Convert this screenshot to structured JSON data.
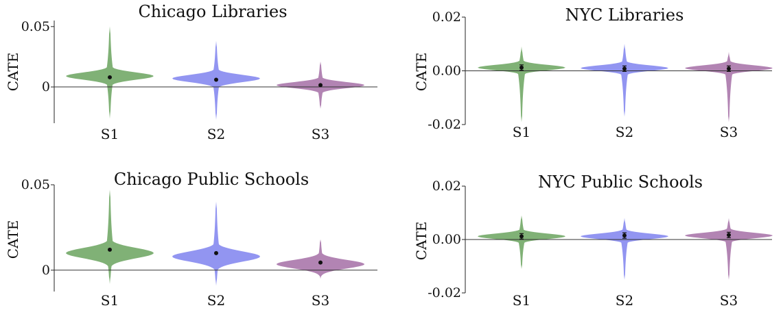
{
  "chart_data": [
    {
      "type": "violin",
      "title": "Chicago Libraries",
      "ylabel": "CATE",
      "xlabel": "",
      "categories": [
        "S1",
        "S2",
        "S3"
      ],
      "ylim": [
        -0.03,
        0.055
      ],
      "ticks": [
        {
          "value": 0.05,
          "label": "0.05"
        },
        {
          "value": 0,
          "label": "0"
        }
      ],
      "zero_line": 0,
      "series": [
        {
          "category": "S1",
          "color": "#6aa35e",
          "mean": 0.008,
          "min": -0.026,
          "max": 0.05,
          "mode": 0.009,
          "spread": 0.003
        },
        {
          "category": "S2",
          "color": "#7f82ee",
          "mean": 0.006,
          "min": -0.027,
          "max": 0.038,
          "mode": 0.007,
          "spread": 0.003
        },
        {
          "category": "S3",
          "color": "#a56fa6",
          "mean": 0.0015,
          "min": -0.018,
          "max": 0.021,
          "mode": 0.0015,
          "spread": 0.0025
        }
      ]
    },
    {
      "type": "violin",
      "title": "NYC Libraries",
      "ylabel": "CATE",
      "xlabel": "",
      "categories": [
        "S1",
        "S2",
        "S3"
      ],
      "ylim": [
        -0.02,
        0.02
      ],
      "ticks": [
        {
          "value": 0.02,
          "label": "0.02"
        },
        {
          "value": 0,
          "label": "0.00"
        },
        {
          "value": -0.02,
          "label": "-0.02"
        }
      ],
      "zero_line": 0,
      "series": [
        {
          "category": "S1",
          "color": "#6aa35e",
          "mean": 0.0012,
          "min": -0.019,
          "max": 0.009,
          "mode": 0.0012,
          "spread": 0.001
        },
        {
          "category": "S2",
          "color": "#7f82ee",
          "mean": 0.0008,
          "min": -0.017,
          "max": 0.01,
          "mode": 0.001,
          "spread": 0.001
        },
        {
          "category": "S3",
          "color": "#a56fa6",
          "mean": 0.0008,
          "min": -0.019,
          "max": 0.007,
          "mode": 0.001,
          "spread": 0.001
        }
      ]
    },
    {
      "type": "violin",
      "title": "Chicago Public Schools",
      "ylabel": "CATE",
      "xlabel": "",
      "categories": [
        "S1",
        "S2",
        "S3"
      ],
      "ylim": [
        -0.0125,
        0.05
      ],
      "ticks": [
        {
          "value": 0.05,
          "label": "0.05"
        },
        {
          "value": 0,
          "label": "0"
        }
      ],
      "zero_line": 0,
      "series": [
        {
          "category": "S1",
          "color": "#6aa35e",
          "mean": 0.012,
          "min": -0.008,
          "max": 0.047,
          "mode": 0.01,
          "spread": 0.003
        },
        {
          "category": "S2",
          "color": "#7f82ee",
          "mean": 0.01,
          "min": -0.009,
          "max": 0.04,
          "mode": 0.008,
          "spread": 0.003
        },
        {
          "category": "S3",
          "color": "#a56fa6",
          "mean": 0.0045,
          "min": -0.005,
          "max": 0.018,
          "mode": 0.0035,
          "spread": 0.0025
        }
      ]
    },
    {
      "type": "violin",
      "title": "NYC Public Schools",
      "ylabel": "CATE",
      "xlabel": "",
      "categories": [
        "S1",
        "S2",
        "S3"
      ],
      "ylim": [
        -0.02,
        0.02
      ],
      "ticks": [
        {
          "value": 0.02,
          "label": "0.02"
        },
        {
          "value": 0,
          "label": "0.00"
        },
        {
          "value": -0.02,
          "label": "-0.02"
        }
      ],
      "zero_line": 0,
      "series": [
        {
          "category": "S1",
          "color": "#6aa35e",
          "mean": 0.0012,
          "min": -0.011,
          "max": 0.009,
          "mode": 0.0012,
          "spread": 0.001
        },
        {
          "category": "S2",
          "color": "#7f82ee",
          "mean": 0.0015,
          "min": -0.015,
          "max": 0.008,
          "mode": 0.0012,
          "spread": 0.001
        },
        {
          "category": "S3",
          "color": "#a56fa6",
          "mean": 0.0017,
          "min": -0.015,
          "max": 0.008,
          "mode": 0.0015,
          "spread": 0.001
        }
      ]
    }
  ]
}
